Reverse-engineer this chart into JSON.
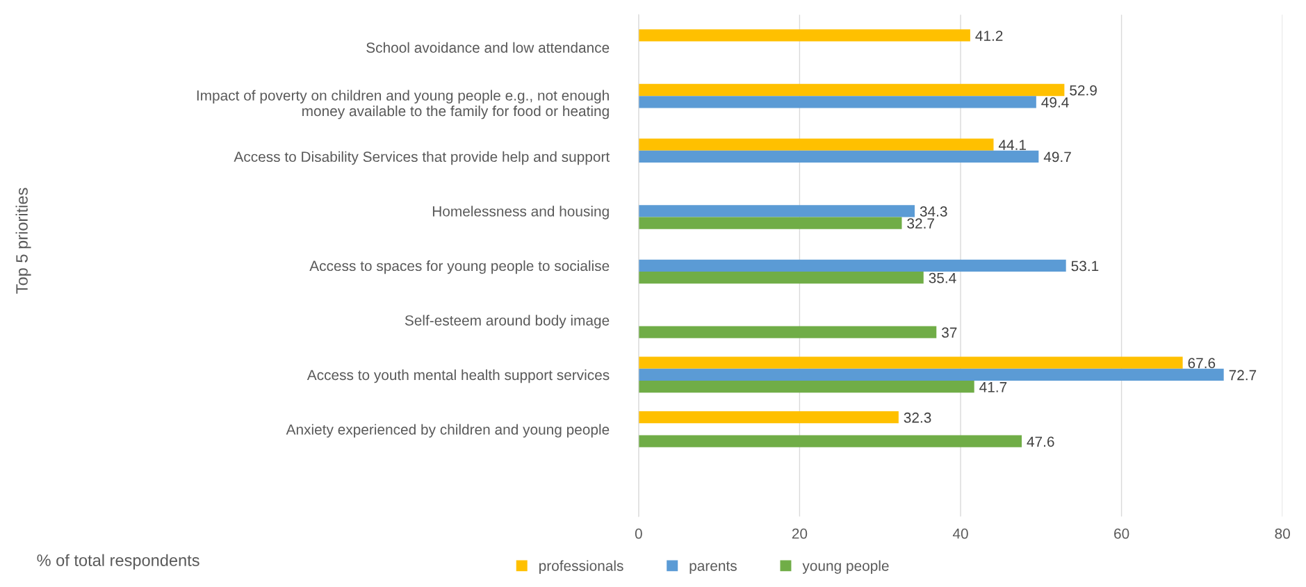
{
  "chart_data": {
    "type": "bar",
    "orientation": "horizontal",
    "annotations": [
      "% of total respondents",
      "Top 5 priorities"
    ],
    "categories": [
      "School avoidance and low attendance",
      "Impact of poverty on children and young people e.g., not enough\nmoney available to the family for food or heating",
      "Access to Disability Services that provide help and support",
      "Homelessness and housing",
      "Access to spaces for young people to socialise",
      "Self-esteem around body image",
      "Access to youth mental health support services",
      "Anxiety experienced by children and young people"
    ],
    "series": [
      {
        "name": "professionals",
        "color": "#ffc000",
        "values": [
          41.2,
          52.9,
          44.1,
          null,
          null,
          null,
          67.6,
          32.3
        ]
      },
      {
        "name": "parents",
        "color": "#5b9bd5",
        "values": [
          null,
          49.4,
          49.7,
          34.3,
          53.1,
          null,
          72.7,
          null
        ]
      },
      {
        "name": "young people",
        "color": "#70ad47",
        "values": [
          null,
          null,
          null,
          32.7,
          35.4,
          37,
          41.7,
          47.6
        ]
      }
    ],
    "xlim": [
      0,
      80
    ],
    "xticks": [
      0,
      20,
      40,
      60,
      80
    ],
    "grid": "x",
    "legend": "bottom",
    "data_labels": true
  }
}
